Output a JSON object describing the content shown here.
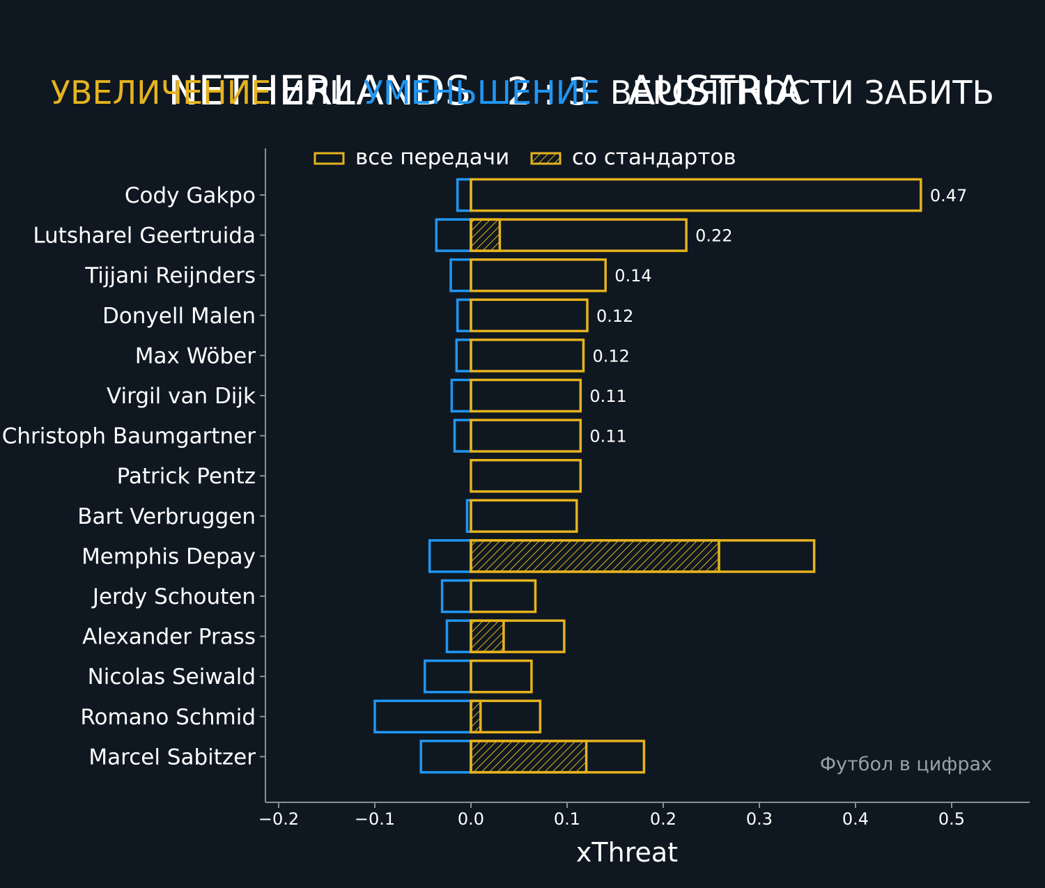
{
  "header": {
    "home_team": "NETHERLANDS",
    "score": "2 : 3",
    "away_team": "AUSTRIA",
    "subtitle_increase": "УВЕЛИЧЕНИЕ",
    "subtitle_or": "ИЛИ",
    "subtitle_decrease": "УМЕНЬШЕНИЕ",
    "subtitle_rest": "ВЕРОЯТНОСТИ ЗАБИТЬ"
  },
  "colors": {
    "background": "#0f1821",
    "increase": "#e6b31e",
    "decrease": "#2196f3",
    "axis": "#8a9099",
    "text": "#ffffff"
  },
  "watermark": "Футбол в цифрах",
  "chart_data": {
    "type": "bar",
    "orientation": "horizontal",
    "xlabel": "xThreat",
    "ylabel": "",
    "xlim": [
      -0.2,
      0.58
    ],
    "xticks": [
      -0.2,
      -0.1,
      0.0,
      0.1,
      0.2,
      0.3,
      0.4,
      0.5
    ],
    "xtick_labels": [
      "−0.2",
      "−0.1",
      "0.0",
      "0.1",
      "0.2",
      "0.3",
      "0.4",
      "0.5"
    ],
    "grid": false,
    "legend": {
      "placement": "top",
      "entries": [
        {
          "label": "все передачи",
          "style": "outline"
        },
        {
          "label": "со стандартов",
          "style": "hatched"
        }
      ]
    },
    "categories": [
      "Cody Gakpo",
      "Lutsharel Geertruida",
      "Tijjani Reijnders",
      "Donyell Malen",
      "Max Wöber",
      "Virgil van Dijk",
      "Christoph Baumgartner",
      "Patrick Pentz",
      "Bart Verbruggen",
      "Memphis Depay",
      "Jerdy Schouten",
      "Alexander Prass",
      "Nicolas Seiwald",
      "Romano Schmid",
      "Marcel Sabitzer"
    ],
    "series": [
      {
        "name": "все передачи",
        "values": [
          0.468,
          0.224,
          0.14,
          0.121,
          0.117,
          0.114,
          0.114,
          0.114,
          0.11,
          0.357,
          0.067,
          0.097,
          0.063,
          0.072,
          0.18
        ]
      },
      {
        "name": "со стандартов",
        "values": [
          0,
          0.03,
          0,
          0,
          0,
          0,
          0,
          0,
          0,
          0.258,
          0,
          0.034,
          0,
          0.01,
          0.12
        ]
      },
      {
        "name": "",
        "values": [
          -0.014,
          -0.036,
          -0.021,
          -0.014,
          -0.015,
          -0.02,
          -0.017,
          0,
          -0.004,
          -0.043,
          -0.03,
          -0.025,
          -0.048,
          -0.1,
          -0.052
        ]
      }
    ],
    "data_labels": [
      "0.47",
      "0.22",
      "0.14",
      "0.12",
      "0.12",
      "0.11",
      "0.11",
      "",
      "",
      "",
      "",
      "",
      "",
      "",
      ""
    ]
  }
}
